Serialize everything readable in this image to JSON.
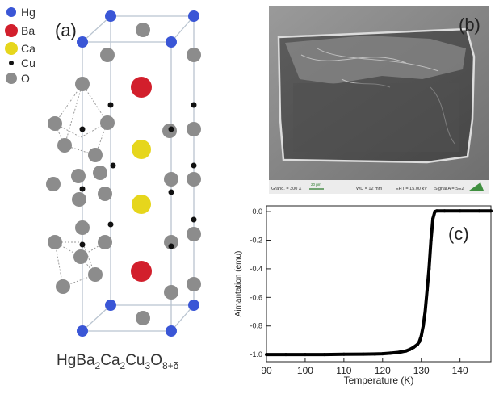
{
  "panel_a": {
    "label": "(a)",
    "legend": [
      {
        "symbol": "Hg",
        "color": "#3a56d6"
      },
      {
        "symbol": "Ba",
        "color": "#d21f2c"
      },
      {
        "symbol": "Ca",
        "color": "#e6d61c"
      },
      {
        "symbol": "Cu",
        "color": "#111111"
      },
      {
        "symbol": "O",
        "color": "#8c8c8c"
      }
    ],
    "formula": {
      "parts": [
        {
          "text": "HgBa",
          "sub": false
        },
        {
          "text": "2",
          "sub": true
        },
        {
          "text": "Ca",
          "sub": false
        },
        {
          "text": "2",
          "sub": true
        },
        {
          "text": "Cu",
          "sub": false
        },
        {
          "text": "3",
          "sub": true
        },
        {
          "text": "O",
          "sub": false
        },
        {
          "text": "8+δ",
          "sub": true
        }
      ]
    }
  },
  "panel_b": {
    "label": "(b)",
    "info_bar": {
      "mag": "Grand. =  300 X",
      "scale": "20 μm",
      "wd": "WD =  12 mm",
      "eht": "EHT = 15.00 kV",
      "signal": "Signal A = SE2"
    }
  },
  "panel_c": {
    "label": "(c)"
  },
  "chart_data": {
    "type": "line",
    "xlabel": "Temperature (K)",
    "ylabel": "Aimantation (emu)",
    "xlim": [
      90,
      148
    ],
    "ylim": [
      -1.05,
      0.04
    ],
    "xticks": [
      90,
      100,
      110,
      120,
      130,
      140
    ],
    "yticks": [
      0.0,
      -0.2,
      -0.4,
      -0.6,
      -0.8,
      -1.0
    ],
    "ytick_labels": [
      "0.0",
      "-0.2",
      "-0.4",
      "-0.6",
      "-0.8",
      "-1.0"
    ],
    "series": [
      {
        "color": "#000000",
        "x": [
          90,
          95,
          100,
          105,
          110,
          115,
          118,
          120,
          122,
          124,
          125,
          126,
          127,
          128,
          129,
          129.5,
          130,
          130.5,
          131,
          131.5,
          132,
          132.5,
          133,
          133.5,
          134,
          136,
          140,
          145,
          148
        ],
        "y": [
          -1.0,
          -1.0,
          -1.0,
          -1.0,
          -0.998,
          -0.997,
          -0.996,
          -0.994,
          -0.99,
          -0.985,
          -0.98,
          -0.975,
          -0.965,
          -0.95,
          -0.93,
          -0.91,
          -0.87,
          -0.8,
          -0.7,
          -0.55,
          -0.4,
          -0.2,
          -0.05,
          0.0,
          0.005,
          0.005,
          0.005,
          0.005,
          0.005
        ]
      }
    ]
  }
}
